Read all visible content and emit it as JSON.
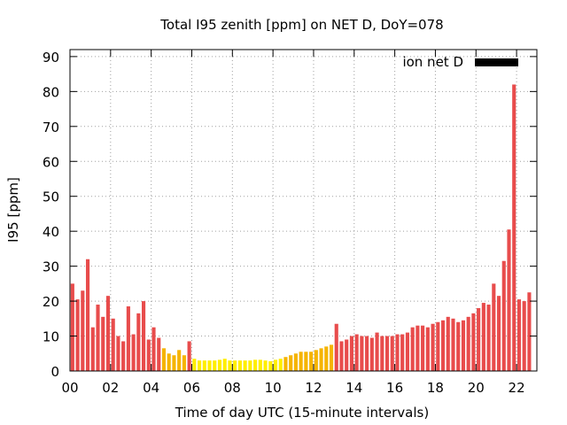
{
  "chart_data": {
    "type": "bar",
    "title": "Total I95 zenith [ppm] on NET D, DoY=078",
    "xlabel": "Time of day UTC (15-minute intervals)",
    "ylabel": "I95 [ppm]",
    "ylim": [
      0,
      92
    ],
    "xlim": [
      0,
      23
    ],
    "yticks": [
      0,
      10,
      20,
      30,
      40,
      50,
      60,
      70,
      80,
      90
    ],
    "xticks": [
      0,
      2,
      4,
      6,
      8,
      10,
      12,
      14,
      16,
      18,
      20,
      22
    ],
    "xtick_labels": [
      "00",
      "02",
      "04",
      "06",
      "08",
      "10",
      "12",
      "14",
      "16",
      "18",
      "20",
      "22"
    ],
    "grid": true,
    "legend": {
      "label": "ion net D",
      "position": "top-right",
      "color": "#000000"
    },
    "colors": {
      "high": "#e84c4c",
      "mid": "#f5b400",
      "low": "#ffee00"
    },
    "bar_step_hours": 0.25,
    "values": [
      25,
      20.5,
      23,
      32,
      12.5,
      19,
      15.5,
      21.5,
      15,
      10,
      8.5,
      18.5,
      10.5,
      16.5,
      20,
      9,
      12.5,
      9.5,
      6.5,
      5,
      4.5,
      6,
      4.5,
      8.5,
      3.5,
      3,
      3,
      3,
      3,
      3.2,
      3.5,
      3,
      3,
      3,
      3,
      3,
      3.2,
      3.2,
      3,
      2.8,
      3.2,
      3.5,
      4,
      4.5,
      5,
      5.5,
      5.5,
      5.5,
      6,
      6.5,
      7,
      7.5,
      13.5,
      8.5,
      9,
      10,
      10.5,
      10,
      10,
      9.5,
      11,
      10,
      10,
      10,
      10.5,
      10.5,
      11,
      12.5,
      13,
      13,
      12.5,
      13.5,
      14,
      14.5,
      15.5,
      15,
      14,
      14.5,
      15.5,
      16.5,
      18,
      19.5,
      19,
      25,
      21.5,
      31.5,
      40.5,
      82,
      20.5,
      20,
      22.5
    ],
    "bar_colors": [
      "high",
      "high",
      "high",
      "high",
      "high",
      "high",
      "high",
      "high",
      "high",
      "high",
      "high",
      "high",
      "high",
      "high",
      "high",
      "high",
      "high",
      "high",
      "mid",
      "mid",
      "mid",
      "mid",
      "mid",
      "high",
      "low",
      "low",
      "low",
      "low",
      "low",
      "low",
      "low",
      "low",
      "low",
      "low",
      "low",
      "low",
      "low",
      "low",
      "low",
      "low",
      "low",
      "low",
      "mid",
      "mid",
      "mid",
      "mid",
      "mid",
      "mid",
      "mid",
      "mid",
      "mid",
      "mid",
      "high",
      "high",
      "high",
      "high",
      "high",
      "high",
      "high",
      "high",
      "high",
      "high",
      "high",
      "high",
      "high",
      "high",
      "high",
      "high",
      "high",
      "high",
      "high",
      "high",
      "high",
      "high",
      "high",
      "high",
      "high",
      "high",
      "high",
      "high",
      "high",
      "high",
      "high",
      "high",
      "high",
      "high",
      "high",
      "high",
      "high",
      "high",
      "high"
    ]
  }
}
